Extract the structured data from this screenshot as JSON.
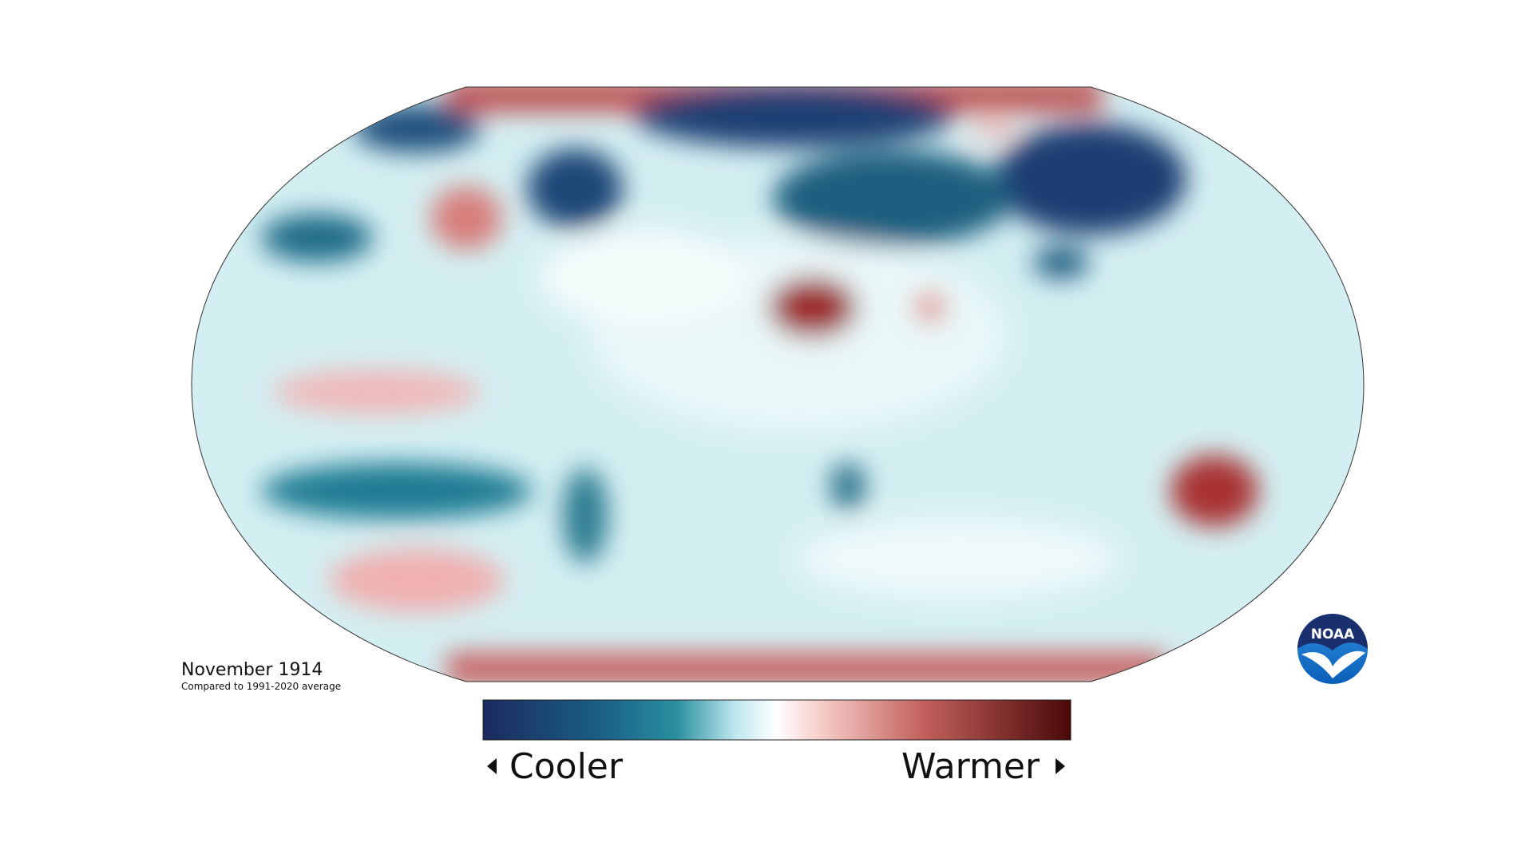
{
  "header": {
    "title": "November 1914",
    "subtitle": "Compared to 1991-2020 average"
  },
  "legend": {
    "low": "Cooler",
    "high": "Warmer"
  },
  "logo": {
    "text": "NOAA"
  }
}
